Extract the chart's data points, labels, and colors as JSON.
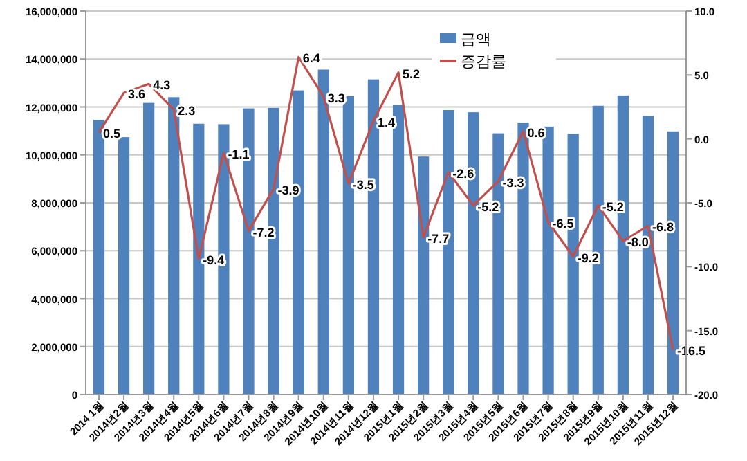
{
  "chart_data": {
    "type": "bar",
    "categories": [
      "2014 1월",
      "2014년2월",
      "2014년3월",
      "2014년4월",
      "2014년5월",
      "2014년6월",
      "2014년7월",
      "2014년8월",
      "2014년9월",
      "2014년10월",
      "2014년11월",
      "2014년12월",
      "2015년1월",
      "2015년2월",
      "2015년3월",
      "2015년4월",
      "2015년5월",
      "2015년6월",
      "2015년7월",
      "2015년8월",
      "2015년9월",
      "2015년10월",
      "2015년11월",
      "2015년12월"
    ],
    "series": [
      {
        "name": "금액",
        "color": "#4f81bd",
        "values": [
          11460000,
          10740000,
          12170000,
          12410000,
          11300000,
          11280000,
          11940000,
          11960000,
          12690000,
          13560000,
          12450000,
          13150000,
          12090000,
          9930000,
          11870000,
          11780000,
          10900000,
          11350000,
          11180000,
          10880000,
          12050000,
          12480000,
          11630000,
          10980000
        ]
      },
      {
        "name": "증감률",
        "type": "line",
        "axis": "y2",
        "color": "#c0504d",
        "marker": "none",
        "line_style": "solid",
        "values": [
          0.5,
          3.6,
          4.3,
          2.3,
          -9.4,
          -1.1,
          -7.2,
          -3.9,
          6.4,
          3.3,
          -3.5,
          1.4,
          5.2,
          -7.7,
          -2.6,
          -5.2,
          -3.3,
          0.6,
          -6.5,
          -9.2,
          -5.2,
          -8.0,
          -6.8,
          -16.5
        ],
        "value_labels": [
          "0.5",
          "3.6",
          "4.3",
          "2.3",
          "-9.4",
          "-1.1",
          "-7.2",
          "-3.9",
          "6.4",
          "3.3",
          "-3.5",
          "1.4",
          "5.2",
          "-7.7",
          "-2.6",
          "-5.2",
          "-3.3",
          "0.6",
          "-6.5",
          "-9.2",
          "-5.2",
          "-8.0",
          "-6.8",
          "-16.5"
        ]
      }
    ],
    "ylim": [
      0,
      16000000
    ],
    "yticks": [
      {
        "value": 0,
        "label": "0"
      },
      {
        "value": 2000000,
        "label": "2,000,000"
      },
      {
        "value": 4000000,
        "label": "4,000,000"
      },
      {
        "value": 6000000,
        "label": "6,000,000"
      },
      {
        "value": 8000000,
        "label": "8,000,000"
      },
      {
        "value": 10000000,
        "label": "10,000,000"
      },
      {
        "value": 12000000,
        "label": "12,000,000"
      },
      {
        "value": 14000000,
        "label": "14,000,000"
      },
      {
        "value": 16000000,
        "label": "16,000,000"
      }
    ],
    "y2lim": [
      -20,
      10
    ],
    "y2ticks": [
      {
        "value": -20,
        "label": "-20.0"
      },
      {
        "value": -15,
        "label": "-15.0"
      },
      {
        "value": -10,
        "label": "-10.0"
      },
      {
        "value": -5,
        "label": "-5.0"
      },
      {
        "value": 0,
        "label": "0.0"
      },
      {
        "value": 5,
        "label": "5.0"
      },
      {
        "value": 10,
        "label": "10.0"
      }
    ],
    "grid": "y",
    "legend": "top"
  }
}
